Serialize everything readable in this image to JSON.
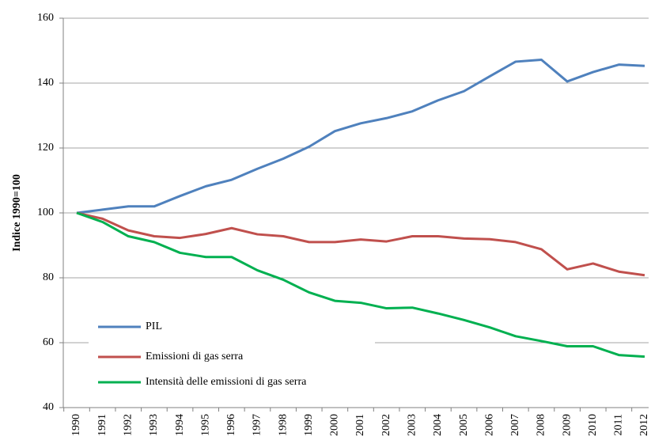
{
  "chart_data": {
    "type": "line",
    "y_label": "Indice 1990=100",
    "categories": [
      "1990",
      "1991",
      "1992",
      "1993",
      "1994",
      "1995",
      "1996",
      "1997",
      "1998",
      "1999",
      "2000",
      "2001",
      "2002",
      "2003",
      "2004",
      "2005",
      "2006",
      "2007",
      "2008",
      "2009",
      "2010",
      "2011",
      "2012"
    ],
    "series": [
      {
        "name": "PIL",
        "color": "#4f81bd",
        "values": [
          100,
          101,
          102,
          102,
          105.2,
          108.2,
          110.2,
          113.6,
          116.7,
          120.4,
          125.2,
          127.6,
          129.2,
          131.3,
          134.7,
          137.5,
          142.1,
          146.6,
          147.2,
          140.5,
          143.4,
          145.7,
          145.3
        ]
      },
      {
        "name": "Emissioni di gas serra",
        "color": "#c0504d",
        "values": [
          100,
          98.2,
          94.6,
          92.8,
          92.3,
          93.5,
          95.3,
          93.4,
          92.8,
          91,
          91,
          91.8,
          91.2,
          92.8,
          92.8,
          92.1,
          91.9,
          91,
          88.8,
          82.6,
          84.4,
          81.9,
          80.8
        ]
      },
      {
        "name": "Intensità delle emissioni di gas serra",
        "color": "#00b050",
        "values": [
          100,
          97.2,
          92.8,
          91,
          87.7,
          86.4,
          86.4,
          82.3,
          79.4,
          75.5,
          72.9,
          72.3,
          70.6,
          70.8,
          69,
          67,
          64.7,
          62,
          60.5,
          58.9,
          58.9,
          56.2,
          55.7
        ]
      }
    ],
    "ylim": [
      40,
      160
    ],
    "yticks": [
      40,
      60,
      80,
      100,
      120,
      140,
      160
    ],
    "grid": true,
    "legend": "lower left"
  }
}
